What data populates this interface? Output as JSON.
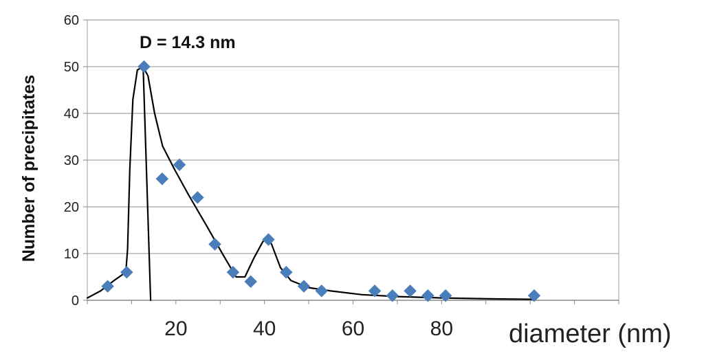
{
  "chart_data": {
    "type": "scatter",
    "title": "",
    "xlabel": "diameter (nm)",
    "ylabel": "Number of precipitates",
    "xlim": [
      0,
      120
    ],
    "ylim": [
      0,
      60
    ],
    "xticks": [
      "20",
      "40",
      "60",
      "80"
    ],
    "yticks": [
      "0",
      "10",
      "20",
      "30",
      "40",
      "50",
      "60"
    ],
    "grid": "horizontal",
    "annotation": "D = 14.3 nm",
    "marker_color": "#4a7ebb",
    "series": [
      {
        "type": "scatter",
        "points": [
          [
            4.6,
            3
          ],
          [
            8.9,
            6
          ],
          [
            12.8,
            50
          ],
          [
            16.9,
            26
          ],
          [
            20.8,
            29
          ],
          [
            24.9,
            22
          ],
          [
            28.8,
            12
          ],
          [
            32.9,
            6
          ],
          [
            36.9,
            4
          ],
          [
            40.9,
            13
          ],
          [
            44.9,
            6
          ],
          [
            48.9,
            3
          ],
          [
            52.9,
            2
          ],
          [
            64.9,
            2
          ],
          [
            68.9,
            1
          ],
          [
            72.9,
            2
          ],
          [
            76.9,
            1
          ],
          [
            80.9,
            1
          ],
          [
            100.9,
            1
          ]
        ]
      },
      {
        "type": "line",
        "color": "#000000",
        "points": [
          [
            0,
            0.5
          ],
          [
            3,
            2
          ],
          [
            6,
            4.2
          ],
          [
            8.7,
            6
          ],
          [
            9.1,
            11
          ],
          [
            9.6,
            28
          ],
          [
            10.3,
            43
          ],
          [
            11.3,
            49.3
          ],
          [
            12.6,
            50
          ],
          [
            13.7,
            48
          ],
          [
            15.2,
            40
          ],
          [
            17,
            33
          ],
          [
            19.7,
            28
          ],
          [
            22.9,
            22.5
          ],
          [
            26.9,
            16
          ],
          [
            30.8,
            9.5
          ],
          [
            33.6,
            5
          ],
          [
            35.6,
            5
          ],
          [
            37.6,
            9
          ],
          [
            39.6,
            12.5
          ],
          [
            40.6,
            13.5
          ],
          [
            41.6,
            12
          ],
          [
            43.6,
            7
          ],
          [
            46,
            4.2
          ],
          [
            50,
            2.7
          ],
          [
            55,
            2
          ],
          [
            62,
            1.2
          ],
          [
            70,
            0.8
          ],
          [
            80,
            0.5
          ],
          [
            92,
            0.3
          ],
          [
            101,
            0.2
          ]
        ]
      },
      {
        "type": "line",
        "color": "#000000",
        "points": [
          [
            12.6,
            50
          ],
          [
            14.3,
            0
          ]
        ]
      }
    ]
  }
}
